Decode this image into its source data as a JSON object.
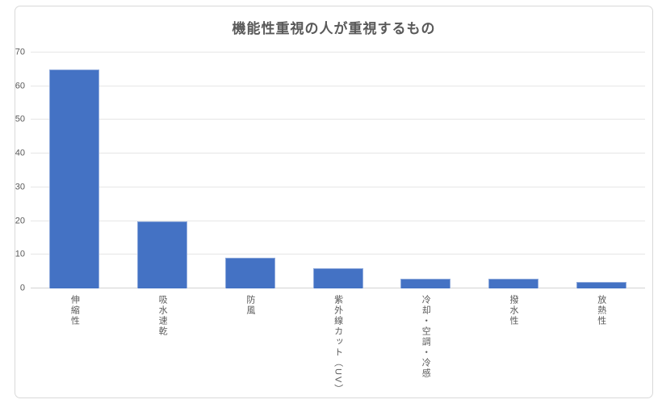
{
  "chart_data": {
    "type": "bar",
    "title": "機能性重視の人が重視するもの",
    "categories": [
      "伸縮性",
      "吸水速乾",
      "防風",
      "紫外線カット（UV）",
      "冷却・空調・冷感",
      "撥水性",
      "放熱性"
    ],
    "values": [
      65,
      20,
      9,
      6,
      3,
      3,
      2
    ],
    "xlabel": "",
    "ylabel": "",
    "ylim": [
      0,
      70
    ],
    "y_ticks": [
      0,
      10,
      20,
      30,
      40,
      50,
      60,
      70
    ],
    "grid": "horizontal",
    "legend_position": "none",
    "bar_fill_color": "#4472C4",
    "bar_border_color": "#8FAADC",
    "text_color": "#595959",
    "gridline_color": "#E6E6E6",
    "frame_border_color": "#D9D9D9"
  }
}
